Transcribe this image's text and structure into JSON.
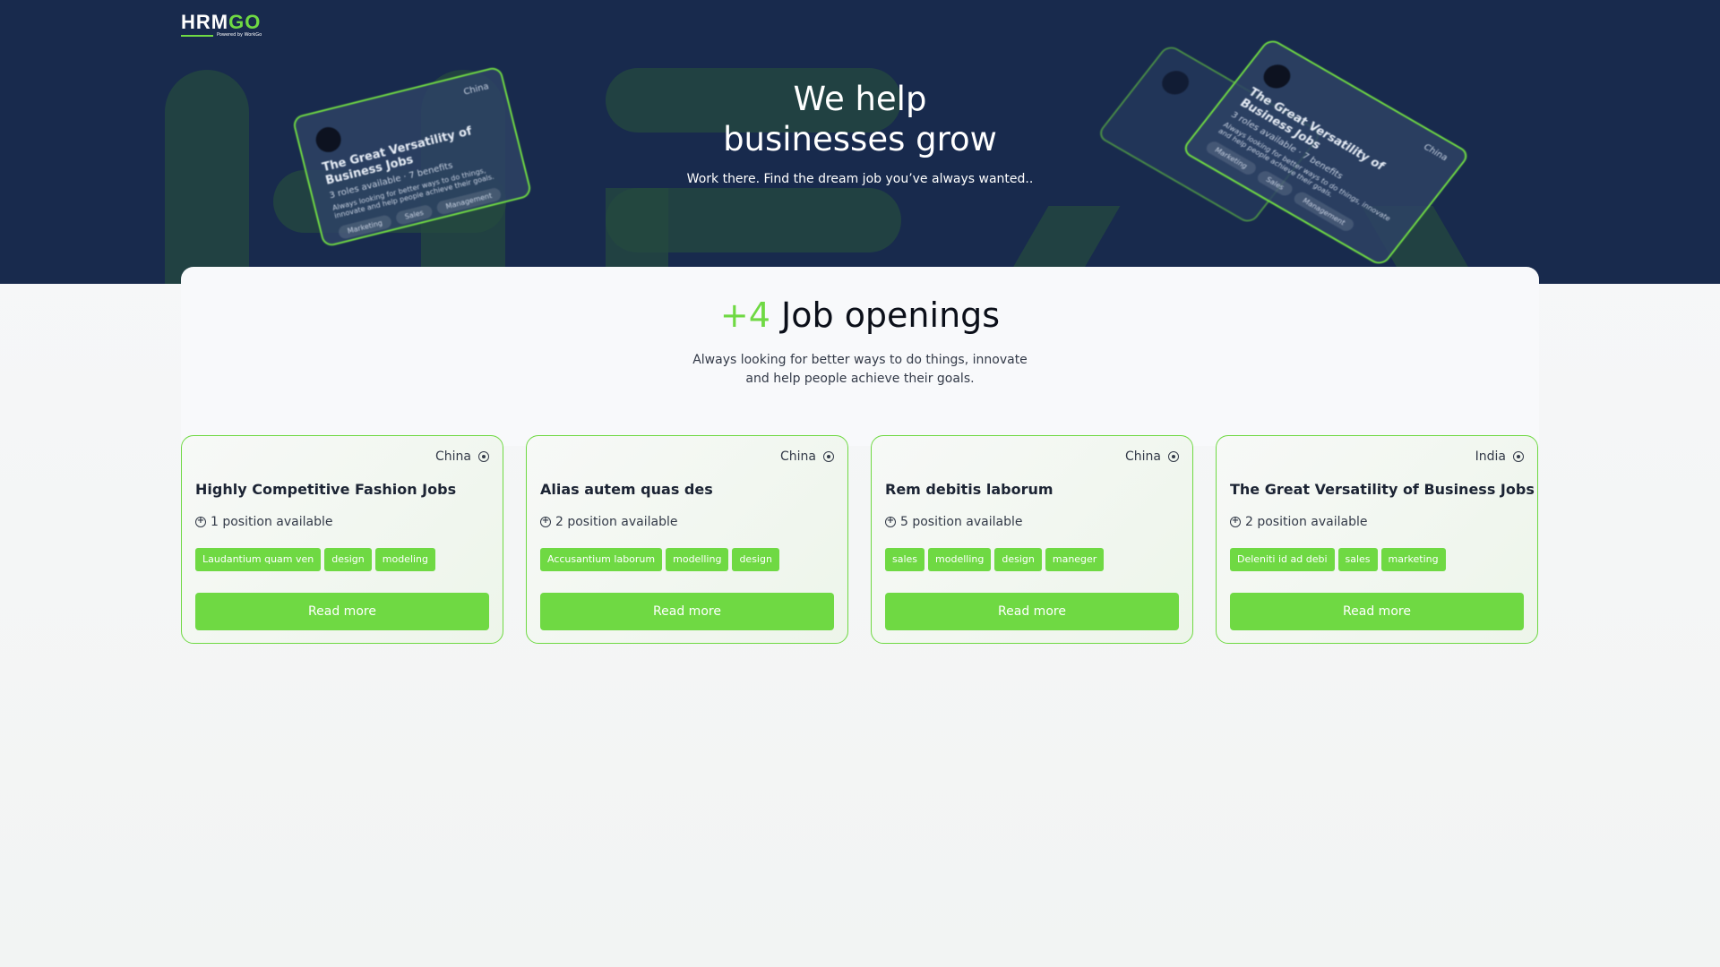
{
  "brand": {
    "logo_main": "HRM",
    "logo_accent": "GO",
    "powered": "Powered by WorkGo",
    "accent": "#6fd943",
    "hero_bg": "#182a4d"
  },
  "hero": {
    "title_line1": "We help",
    "title_line2": "businesses grow",
    "subtitle": "Work there. Find the dream job you’ve always wanted.."
  },
  "mockups": [
    {
      "location": "China",
      "title": "The Great Versatility of Business Jobs",
      "roles": "3 roles available",
      "benefits": "7 benefits",
      "desc": "Always looking for better ways to do things, innovate and help people achieve their goals.",
      "tags": [
        "Marketing",
        "Sales",
        "Management"
      ]
    }
  ],
  "openings": {
    "count": "+4",
    "title": "Job openings",
    "desc_line1": "Always looking for better ways to do things, innovate",
    "desc_line2": "and help people achieve their goals."
  },
  "jobs": [
    {
      "location": "China",
      "title": "Highly Competitive Fashion Jobs",
      "positions": "1 position available",
      "tags": [
        "Laudantium quam ven",
        "design",
        "modeling"
      ],
      "button": "Read more"
    },
    {
      "location": "China",
      "title": "Alias autem quas des",
      "positions": "2 position available",
      "tags": [
        "Accusantium laborum",
        "modelling",
        "design"
      ],
      "button": "Read more"
    },
    {
      "location": "China",
      "title": "Rem debitis laborum",
      "positions": "5 position available",
      "tags": [
        "sales",
        "modelling",
        "design",
        "maneger"
      ],
      "button": "Read more"
    },
    {
      "location": "India",
      "title": "The Great Versatility of Business Jobs",
      "positions": "2 position available",
      "tags": [
        "Deleniti id ad debi",
        "sales",
        "marketing"
      ],
      "button": "Read more"
    }
  ]
}
